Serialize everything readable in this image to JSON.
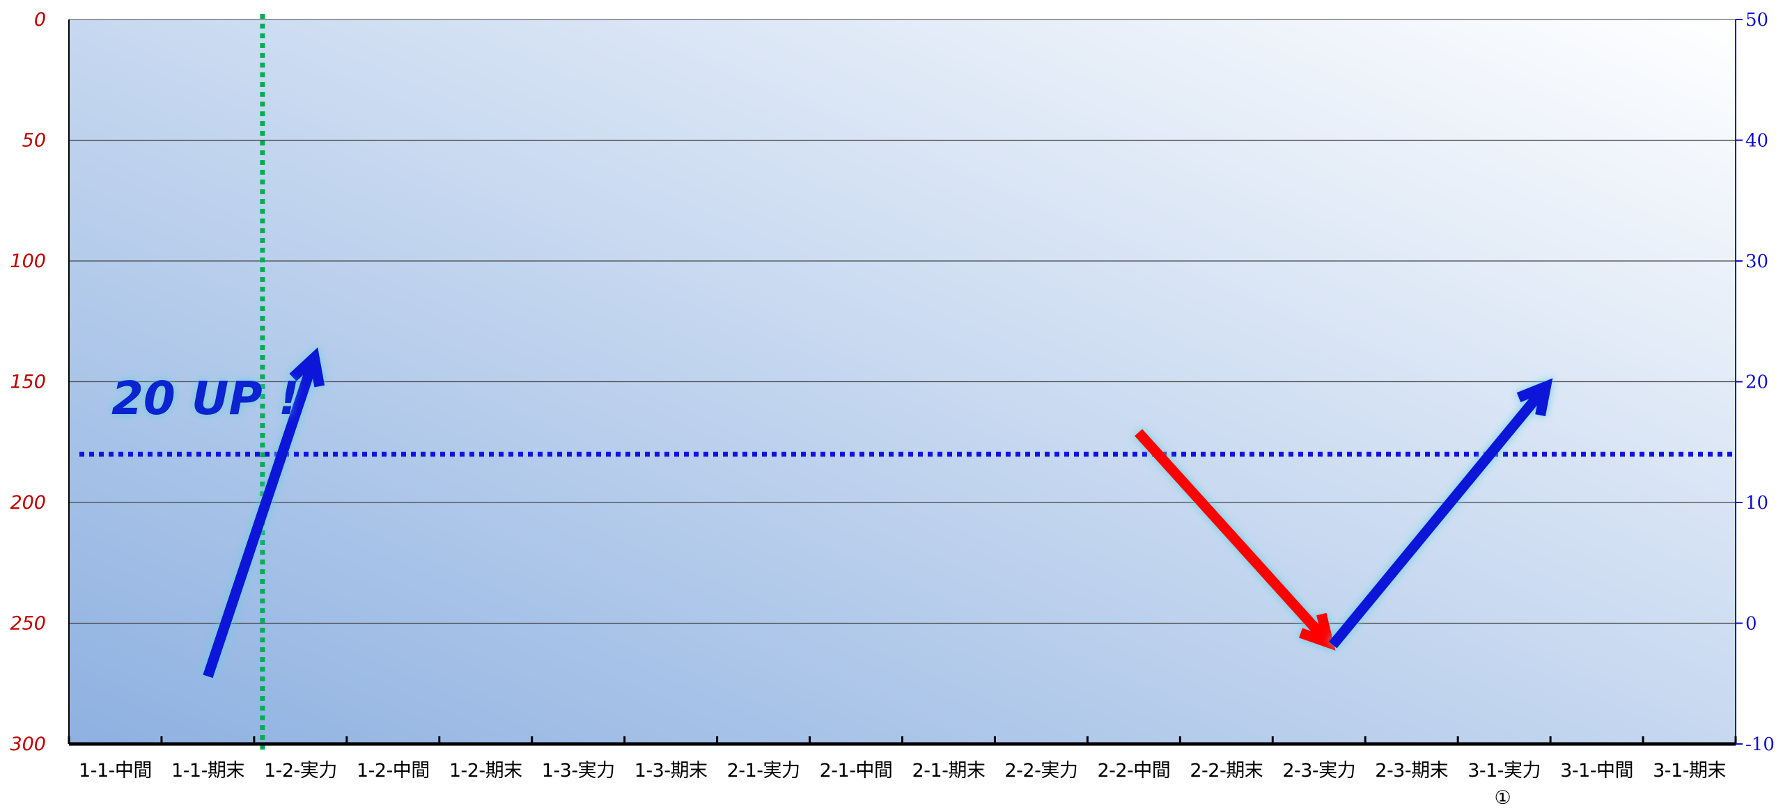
{
  "chart_data": {
    "type": "line",
    "categories": [
      "1-1-中間",
      "1-1-期末",
      "1-2-実力",
      "1-2-中間",
      "1-2-期末",
      "1-3-実力",
      "1-3-期末",
      "2-1-実力",
      "2-1-中間",
      "2-1-期末",
      "2-2-実力",
      "2-2-中間",
      "2-2-期末",
      "2-3-実力",
      "2-3-期末",
      "3-1-実力",
      "3-1-中間",
      "3-1-期末"
    ],
    "category_note": "①",
    "y_left": {
      "ticks": [
        0,
        50,
        100,
        150,
        200,
        250,
        300
      ],
      "range": [
        0,
        300
      ],
      "reversed": true,
      "color": "#c00000"
    },
    "y_right": {
      "ticks": [
        50,
        40,
        30,
        20,
        10,
        0,
        -10
      ],
      "range": [
        -10,
        50
      ],
      "color": "#1010d0"
    },
    "reference_lines": {
      "horizontal_left_value": 180,
      "horizontal_color": "#1010e0",
      "vertical_after_category": "1-1-期末",
      "vertical_color": "#00b050"
    },
    "annotation": {
      "text": "20 UP !",
      "color": "#1020d0"
    },
    "arrows": [
      {
        "name": "up-arrow-1",
        "color": "#0a14d8",
        "from": {
          "x": 1.5,
          "y_left": 272
        },
        "to": {
          "x": 2.65,
          "y_left": 140
        }
      },
      {
        "name": "down-arrow",
        "color": "#ff0000",
        "from": {
          "x": 11.55,
          "y_left": 171
        },
        "to": {
          "x": 13.6,
          "y_left": 258
        }
      },
      {
        "name": "up-arrow-2",
        "color": "#0a14d8",
        "from": {
          "x": 13.65,
          "y_left": 259
        },
        "to": {
          "x": 15.95,
          "y_left": 152
        }
      }
    ],
    "grid": true,
    "gradient": {
      "light": "#ffffff",
      "dark": "#8eb1e1"
    }
  }
}
